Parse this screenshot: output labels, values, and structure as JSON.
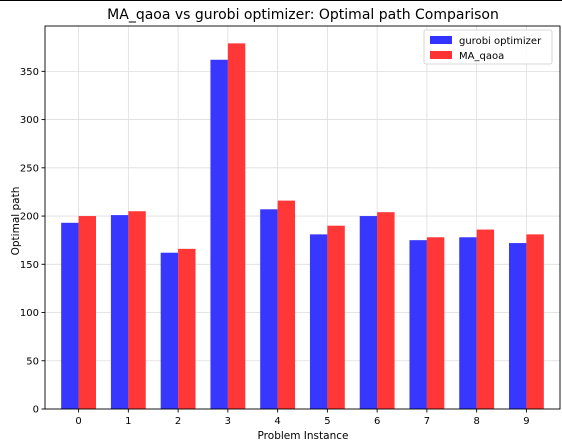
{
  "chart_data": {
    "type": "bar",
    "title": "MA_qaoa vs gurobi optimizer: Optimal path Comparison",
    "xlabel": "Problem Instance",
    "ylabel": "Optimal path",
    "categories": [
      "0",
      "1",
      "2",
      "3",
      "4",
      "5",
      "6",
      "7",
      "8",
      "9"
    ],
    "series": [
      {
        "name": "gurobi optimizer",
        "color": "#3333ff",
        "values": [
          193,
          201,
          162,
          362,
          207,
          181,
          200,
          175,
          178,
          172
        ]
      },
      {
        "name": "MA_qaoa",
        "color": "#ff3333",
        "values": [
          200,
          205,
          166,
          379,
          216,
          190,
          204,
          178,
          186,
          181
        ]
      }
    ],
    "ylim": [
      0,
      397
    ],
    "yticks": [
      0,
      50,
      100,
      150,
      200,
      250,
      300,
      350
    ],
    "grid": true,
    "legend_position": "top-right"
  }
}
